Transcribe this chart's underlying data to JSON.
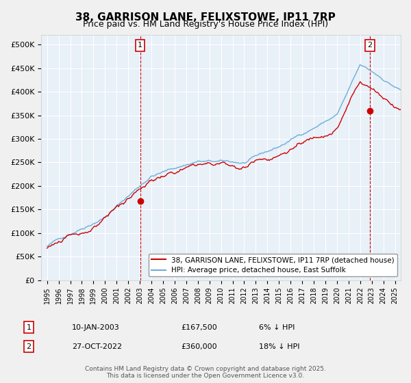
{
  "title": "38, GARRISON LANE, FELIXSTOWE, IP11 7RP",
  "subtitle": "Price paid vs. HM Land Registry's House Price Index (HPI)",
  "legend_line1": "38, GARRISON LANE, FELIXSTOWE, IP11 7RP (detached house)",
  "legend_line2": "HPI: Average price, detached house, East Suffolk",
  "footer": "Contains HM Land Registry data © Crown copyright and database right 2025.\nThis data is licensed under the Open Government Licence v3.0.",
  "annotation1_label": "1",
  "annotation1_date": "10-JAN-2003",
  "annotation1_price": "£167,500",
  "annotation1_note": "6% ↓ HPI",
  "annotation2_label": "2",
  "annotation2_date": "27-OCT-2022",
  "annotation2_price": "£360,000",
  "annotation2_note": "18% ↓ HPI",
  "sale1_x": 2003.03,
  "sale1_y": 167500,
  "sale2_x": 2022.82,
  "sale2_y": 360000,
  "hpi_color": "#6baed6",
  "price_color": "#cc0000",
  "plot_bg": "#e8f0f8",
  "grid_color": "#ffffff",
  "vline_color": "#cc0000",
  "ylim": [
    0,
    520000
  ],
  "yticks": [
    0,
    50000,
    100000,
    150000,
    200000,
    250000,
    300000,
    350000,
    400000,
    450000,
    500000
  ],
  "ytick_labels": [
    "£0",
    "£50K",
    "£100K",
    "£150K",
    "£200K",
    "£250K",
    "£300K",
    "£350K",
    "£400K",
    "£450K",
    "£500K"
  ],
  "xlim_start": 1994.5,
  "xlim_end": 2025.5
}
